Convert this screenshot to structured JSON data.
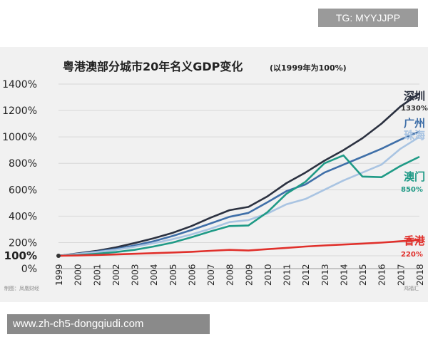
{
  "watermark_top": "TG: MYYJJPP",
  "watermark_bottom": "www.zh-ch5-dongqiudi.com",
  "footer_left": "制图：凤凰财经",
  "footer_right": "鸿福汇",
  "colors": {
    "深圳": "#2b3140",
    "广州": "#3f6fa8",
    "珠海": "#a9c4e2",
    "澳门": "#1f9a86",
    "香港": "#e0302b"
  },
  "chart_data": {
    "type": "line",
    "title": "粤港澳部分城市20年名义GDP变化",
    "subtitle": "(以1999年为100%)",
    "x": [
      "1999",
      "2000",
      "2001",
      "2002",
      "2003",
      "2004",
      "2005",
      "2006",
      "2007",
      "2008",
      "2009",
      "2010",
      "2011",
      "2012",
      "2013",
      "2014",
      "2015",
      "2016",
      "2017",
      "2018"
    ],
    "yticks": [
      "0%",
      "100%",
      "200%",
      "400%",
      "600%",
      "800%",
      "1000%",
      "1200%",
      "1400%"
    ],
    "ylim": [
      0,
      1400
    ],
    "series": [
      {
        "name": "深圳",
        "end_label": "1330%",
        "values": [
          100,
          118,
          137,
          163,
          196,
          232,
          273,
          325,
          388,
          445,
          470,
          550,
          650,
          730,
          820,
          900,
          990,
          1100,
          1230,
          1330
        ]
      },
      {
        "name": "广州",
        "end_label": "",
        "values": [
          100,
          115,
          132,
          152,
          178,
          210,
          250,
          295,
          345,
          395,
          425,
          505,
          590,
          640,
          730,
          790,
          850,
          910,
          980,
          1040
        ]
      },
      {
        "name": "珠海",
        "end_label": "",
        "values": [
          100,
          114,
          128,
          145,
          168,
          195,
          225,
          262,
          305,
          355,
          370,
          420,
          490,
          530,
          600,
          670,
          730,
          790,
          910,
          1000
        ]
      },
      {
        "name": "澳门",
        "end_label": "850%",
        "values": [
          100,
          105,
          115,
          128,
          145,
          170,
          200,
          240,
          285,
          325,
          330,
          430,
          570,
          660,
          800,
          860,
          700,
          695,
          780,
          850
        ]
      },
      {
        "name": "香港",
        "end_label": "220%",
        "values": [
          100,
          102,
          106,
          110,
          115,
          120,
          125,
          130,
          138,
          145,
          140,
          150,
          160,
          170,
          178,
          185,
          192,
          200,
          210,
          220
        ]
      }
    ]
  }
}
